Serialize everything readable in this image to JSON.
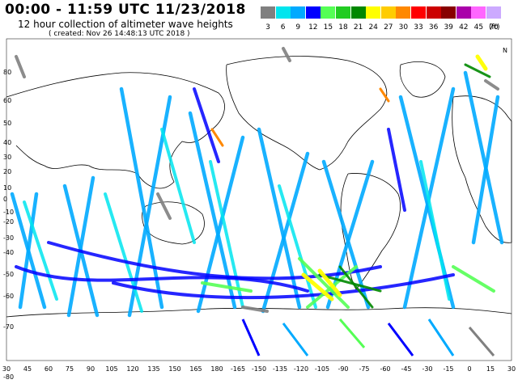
{
  "header": {
    "title": "00:00 - 11:59 UTC 11/23/2018",
    "subtitle": "12 hour collection of altimeter wave heights",
    "created": "( created: Nov 26 14:48:13 UTC 2018 )"
  },
  "legend": {
    "unit": "(ft)",
    "bins": [
      {
        "label": "3",
        "color": "#808080"
      },
      {
        "label": "6",
        "color": "#00e5ee"
      },
      {
        "label": "9",
        "color": "#00aaff"
      },
      {
        "label": "12",
        "color": "#0000ff"
      },
      {
        "label": "15",
        "color": "#55ff55"
      },
      {
        "label": "18",
        "color": "#22cc22"
      },
      {
        "label": "21",
        "color": "#008800"
      },
      {
        "label": "24",
        "color": "#ffff00"
      },
      {
        "label": "27",
        "color": "#ffcc00"
      },
      {
        "label": "30",
        "color": "#ff8800"
      },
      {
        "label": "33",
        "color": "#ff0000"
      },
      {
        "label": "36",
        "color": "#cc0000"
      },
      {
        "label": "39",
        "color": "#880000"
      },
      {
        "label": "42",
        "color": "#aa00aa"
      },
      {
        "label": "45",
        "color": "#ff66ff"
      },
      {
        "label": "70",
        "color": "#ccaaff"
      }
    ]
  },
  "axes": {
    "lat_labels": [
      "80",
      "60",
      "50",
      "40",
      "30",
      "20",
      "10",
      "0",
      "-10",
      "-20",
      "-30",
      "-40",
      "-50",
      "-60",
      "-70",
      "-80"
    ],
    "lon_labels": [
      "30",
      "45",
      "60",
      "75",
      "90",
      "105",
      "120",
      "135",
      "150",
      "165",
      "180",
      "-165",
      "-150",
      "-135",
      "-120",
      "-105",
      "-90",
      "-75",
      "-60",
      "-45",
      "-30",
      "-15",
      "0",
      "15",
      "30"
    ],
    "corner_label": "N"
  }
}
